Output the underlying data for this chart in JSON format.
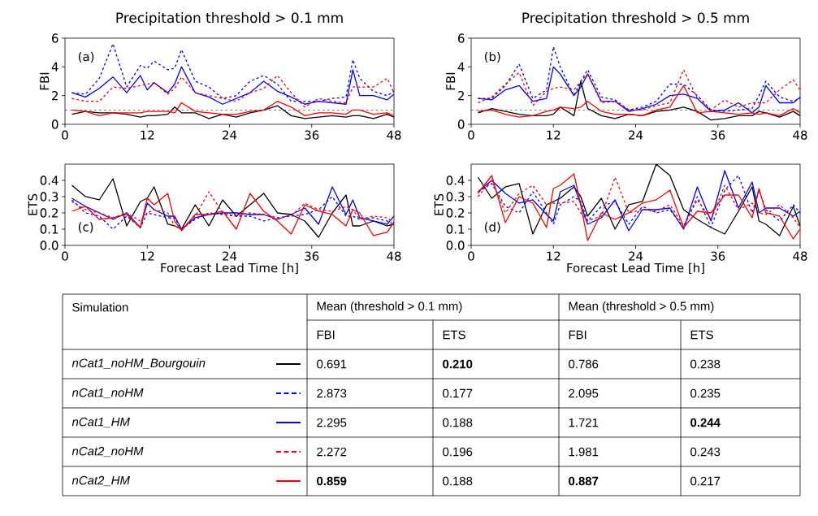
{
  "chart_data": [
    {
      "type": "line",
      "title": "Precipitation threshold > 0.1 mm",
      "ylabel": "FBI",
      "annotations": [
        "(a)"
      ],
      "x": [
        1,
        3,
        5,
        7,
        9,
        11,
        12,
        13,
        15,
        16,
        17,
        19,
        21,
        23,
        25,
        27,
        29,
        31,
        33,
        35,
        37,
        39,
        41,
        42,
        43,
        45,
        47,
        48
      ],
      "xlim": [
        0,
        48
      ],
      "xticks": [
        0,
        12,
        24,
        36,
        48
      ],
      "ylim": [
        0,
        6
      ],
      "yticks": [
        0,
        2,
        4,
        6
      ],
      "ref_lines": [
        {
          "axis": "y",
          "value": 1,
          "color": "#000000",
          "line_style": "dashed"
        }
      ],
      "series": [
        {
          "color": "#000000",
          "line_style": "solid",
          "values": [
            0.7,
            0.9,
            0.8,
            0.8,
            0.7,
            0.5,
            0.6,
            0.6,
            0.7,
            1.2,
            0.8,
            0.8,
            0.4,
            0.7,
            0.5,
            0.8,
            1.0,
            1.3,
            0.6,
            0.4,
            0.5,
            0.6,
            0.5,
            0.6,
            0.6,
            0.4,
            0.7,
            0.5
          ]
        },
        {
          "color": "#0000ff",
          "line_style": "dashed",
          "values": [
            2.2,
            2.1,
            3.2,
            5.6,
            2.6,
            4.1,
            3.9,
            4.4,
            3.8,
            3.9,
            5.2,
            3.0,
            2.6,
            1.8,
            2.0,
            3.0,
            3.4,
            2.8,
            1.6,
            1.6,
            1.6,
            1.8,
            1.9,
            4.5,
            3.2,
            2.3,
            2.0,
            2.3
          ]
        },
        {
          "color": "#0000ff",
          "line_style": "solid",
          "values": [
            2.2,
            1.9,
            2.5,
            3.3,
            2.2,
            3.4,
            2.4,
            2.9,
            2.2,
            2.8,
            4.0,
            2.2,
            1.9,
            1.4,
            1.8,
            2.2,
            3.0,
            2.3,
            1.9,
            1.4,
            1.6,
            1.5,
            1.4,
            3.8,
            2.0,
            2.0,
            1.7,
            2.1
          ]
        },
        {
          "color": "#ff0000",
          "line_style": "dashed",
          "values": [
            1.8,
            1.6,
            1.6,
            2.6,
            2.5,
            2.7,
            2.8,
            2.9,
            2.1,
            2.5,
            3.3,
            2.2,
            2.0,
            1.8,
            1.6,
            2.2,
            2.5,
            3.4,
            2.2,
            1.2,
            1.8,
            1.6,
            1.5,
            2.6,
            2.6,
            2.6,
            3.2,
            2.2
          ]
        },
        {
          "color": "#ff0000",
          "line_style": "solid",
          "values": [
            1.0,
            0.9,
            0.6,
            0.8,
            0.8,
            0.8,
            0.9,
            0.9,
            0.9,
            0.8,
            1.5,
            0.9,
            0.8,
            0.7,
            0.7,
            0.9,
            1.0,
            1.6,
            1.2,
            0.6,
            0.8,
            0.8,
            0.7,
            1.0,
            1.0,
            0.7,
            0.8,
            0.6
          ]
        }
      ]
    },
    {
      "type": "line",
      "title": "Precipitation threshold > 0.5 mm",
      "ylabel": "FBI",
      "annotations": [
        "(b)"
      ],
      "x": [
        1,
        3,
        5,
        7,
        9,
        11,
        12,
        13,
        15,
        16,
        17,
        19,
        21,
        23,
        25,
        27,
        29,
        31,
        33,
        35,
        37,
        39,
        41,
        42,
        43,
        45,
        47,
        48
      ],
      "xlim": [
        0,
        48
      ],
      "xticks": [
        0,
        12,
        24,
        36,
        48
      ],
      "ylim": [
        0,
        6
      ],
      "yticks": [
        0,
        2,
        4,
        6
      ],
      "ref_lines": [
        {
          "axis": "y",
          "value": 1,
          "color": "#000000",
          "line_style": "dashed"
        }
      ],
      "series": [
        {
          "color": "#000000",
          "line_style": "solid",
          "values": [
            0.8,
            1.1,
            0.9,
            0.7,
            0.6,
            0.6,
            0.7,
            1.2,
            0.6,
            3.0,
            1.1,
            0.6,
            0.4,
            0.7,
            0.6,
            0.9,
            1.0,
            1.2,
            0.9,
            0.3,
            0.4,
            0.6,
            0.6,
            0.9,
            0.8,
            0.5,
            0.9,
            0.6
          ]
        },
        {
          "color": "#0000ff",
          "line_style": "dashed",
          "values": [
            1.8,
            1.8,
            2.7,
            4.2,
            1.8,
            2.4,
            5.4,
            4.0,
            2.0,
            3.0,
            3.8,
            1.9,
            1.7,
            1.0,
            1.2,
            1.6,
            2.8,
            2.8,
            2.0,
            1.0,
            0.9,
            1.0,
            1.1,
            2.0,
            3.0,
            1.9,
            1.6,
            1.8
          ]
        },
        {
          "color": "#0000ff",
          "line_style": "solid",
          "values": [
            1.8,
            1.7,
            2.4,
            2.7,
            1.6,
            1.8,
            4.0,
            3.5,
            2.0,
            2.6,
            3.5,
            1.6,
            1.6,
            0.9,
            1.1,
            1.4,
            2.0,
            2.1,
            1.8,
            0.9,
            1.0,
            1.5,
            0.8,
            1.2,
            2.7,
            1.5,
            1.5,
            1.9
          ]
        },
        {
          "color": "#ff0000",
          "line_style": "dashed",
          "values": [
            1.5,
            1.9,
            2.8,
            3.6,
            1.3,
            2.3,
            2.5,
            2.6,
            2.4,
            3.0,
            3.5,
            1.5,
            1.6,
            1.0,
            1.0,
            1.3,
            1.5,
            3.8,
            1.8,
            1.0,
            1.7,
            1.2,
            1.5,
            1.5,
            1.5,
            2.4,
            3.1,
            2.4
          ]
        },
        {
          "color": "#ff0000",
          "line_style": "solid",
          "values": [
            0.9,
            1.0,
            0.7,
            0.5,
            0.6,
            0.9,
            1.0,
            1.2,
            1.1,
            1.2,
            1.6,
            0.9,
            0.7,
            0.7,
            0.6,
            1.0,
            1.2,
            2.7,
            0.8,
            0.9,
            0.8,
            0.7,
            0.8,
            0.7,
            0.8,
            0.6,
            1.1,
            0.8
          ]
        }
      ]
    },
    {
      "type": "line",
      "xlabel": "Forecast Lead Time [h]",
      "ylabel": "ETS",
      "annotations": [
        "(c)"
      ],
      "x": [
        1,
        3,
        5,
        7,
        9,
        11,
        12,
        13,
        15,
        16,
        17,
        19,
        21,
        23,
        25,
        27,
        29,
        31,
        33,
        35,
        37,
        39,
        41,
        42,
        43,
        45,
        47,
        48
      ],
      "xlim": [
        0,
        48
      ],
      "xticks": [
        0,
        12,
        24,
        36,
        48
      ],
      "ylim": [
        0,
        0.5
      ],
      "yticks": [
        {
          "value": 0,
          "label": "0.0"
        },
        0.1,
        0.2,
        0.3,
        0.4
      ],
      "series": [
        {
          "color": "#000000",
          "line_style": "solid",
          "values": [
            0.37,
            0.3,
            0.28,
            0.41,
            0.12,
            0.27,
            0.29,
            0.36,
            0.13,
            0.12,
            0.1,
            0.25,
            0.12,
            0.28,
            0.18,
            0.25,
            0.32,
            0.2,
            0.19,
            0.15,
            0.05,
            0.2,
            0.31,
            0.12,
            0.12,
            0.15,
            0.12,
            0.13
          ]
        },
        {
          "color": "#0000ff",
          "line_style": "dashed",
          "values": [
            0.28,
            0.2,
            0.18,
            0.1,
            0.18,
            0.11,
            0.2,
            0.19,
            0.17,
            0.17,
            0.1,
            0.16,
            0.2,
            0.19,
            0.18,
            0.18,
            0.15,
            0.17,
            0.18,
            0.19,
            0.22,
            0.3,
            0.18,
            0.18,
            0.16,
            0.17,
            0.15,
            0.13
          ]
        },
        {
          "color": "#0000ff",
          "line_style": "solid",
          "values": [
            0.29,
            0.24,
            0.2,
            0.16,
            0.2,
            0.11,
            0.26,
            0.22,
            0.18,
            0.18,
            0.1,
            0.17,
            0.19,
            0.2,
            0.2,
            0.19,
            0.19,
            0.16,
            0.19,
            0.23,
            0.13,
            0.36,
            0.19,
            0.28,
            0.17,
            0.15,
            0.13,
            0.18
          ]
        },
        {
          "color": "#ff0000",
          "line_style": "dashed",
          "values": [
            0.27,
            0.22,
            0.2,
            0.17,
            0.2,
            0.15,
            0.2,
            0.22,
            0.2,
            0.12,
            0.1,
            0.18,
            0.33,
            0.2,
            0.18,
            0.2,
            0.19,
            0.17,
            0.18,
            0.26,
            0.22,
            0.21,
            0.24,
            0.22,
            0.16,
            0.18,
            0.17,
            0.14
          ]
        },
        {
          "color": "#ff0000",
          "line_style": "solid",
          "values": [
            0.21,
            0.24,
            0.16,
            0.17,
            0.19,
            0.11,
            0.29,
            0.25,
            0.32,
            0.15,
            0.09,
            0.19,
            0.19,
            0.21,
            0.1,
            0.32,
            0.21,
            0.15,
            0.07,
            0.25,
            0.21,
            0.19,
            0.12,
            0.22,
            0.2,
            0.06,
            0.08,
            0.14
          ]
        }
      ]
    },
    {
      "type": "line",
      "xlabel": "Forecast Lead Time [h]",
      "ylabel": "ETS",
      "annotations": [
        "(d)"
      ],
      "x": [
        1,
        3,
        5,
        7,
        9,
        11,
        12,
        13,
        15,
        16,
        17,
        19,
        21,
        23,
        25,
        27,
        29,
        31,
        33,
        35,
        37,
        39,
        41,
        42,
        43,
        45,
        47,
        48
      ],
      "xlim": [
        0,
        48
      ],
      "xticks": [
        0,
        12,
        24,
        36,
        48
      ],
      "ylim": [
        0,
        0.5
      ],
      "yticks": [
        {
          "value": 0,
          "label": "0.0"
        },
        0.1,
        0.2,
        0.3,
        0.4
      ],
      "series": [
        {
          "color": "#000000",
          "line_style": "solid",
          "values": [
            0.42,
            0.29,
            0.36,
            0.38,
            0.07,
            0.25,
            0.27,
            0.29,
            0.36,
            0.3,
            0.18,
            0.29,
            0.1,
            0.25,
            0.27,
            0.5,
            0.43,
            0.22,
            0.16,
            0.11,
            0.07,
            0.21,
            0.36,
            0.15,
            0.13,
            0.06,
            0.24,
            0.12
          ]
        },
        {
          "color": "#0000ff",
          "line_style": "dashed",
          "values": [
            0.33,
            0.38,
            0.24,
            0.2,
            0.33,
            0.2,
            0.13,
            0.25,
            0.3,
            0.27,
            0.15,
            0.24,
            0.27,
            0.13,
            0.24,
            0.2,
            0.22,
            0.11,
            0.3,
            0.11,
            0.34,
            0.43,
            0.2,
            0.34,
            0.22,
            0.15,
            0.25,
            0.2
          ]
        },
        {
          "color": "#0000ff",
          "line_style": "solid",
          "values": [
            0.33,
            0.4,
            0.32,
            0.26,
            0.28,
            0.19,
            0.15,
            0.33,
            0.37,
            0.25,
            0.13,
            0.17,
            0.28,
            0.09,
            0.22,
            0.22,
            0.23,
            0.1,
            0.36,
            0.15,
            0.46,
            0.23,
            0.39,
            0.2,
            0.23,
            0.23,
            0.18,
            0.21
          ]
        },
        {
          "color": "#ff0000",
          "line_style": "dashed",
          "values": [
            0.3,
            0.4,
            0.2,
            0.32,
            0.37,
            0.25,
            0.26,
            0.26,
            0.27,
            0.2,
            0.15,
            0.18,
            0.42,
            0.2,
            0.22,
            0.21,
            0.25,
            0.12,
            0.28,
            0.16,
            0.37,
            0.22,
            0.26,
            0.2,
            0.19,
            0.25,
            0.17,
            0.11
          ]
        },
        {
          "color": "#ff0000",
          "line_style": "solid",
          "values": [
            0.32,
            0.43,
            0.14,
            0.3,
            0.26,
            0.11,
            0.35,
            0.37,
            0.44,
            0.25,
            0.03,
            0.2,
            0.16,
            0.2,
            0.26,
            0.28,
            0.34,
            0.11,
            0.21,
            0.2,
            0.31,
            0.31,
            0.17,
            0.35,
            0.2,
            0.18,
            0.04,
            0.1
          ]
        }
      ]
    },
    {
      "type": "other",
      "annotations": [
        "Simulation",
        "Mean (threshold > 0.1 mm)",
        "Mean (threshold > 0.5 mm)"
      ],
      "categories": [
        "nCat1_noHM_Bourgouin",
        "nCat1_noHM",
        "nCat1_HM",
        "nCat2_noHM",
        "nCat2_HM"
      ],
      "colors": [
        "#000000",
        "#0000ff",
        "#0000ff",
        "#ff0000",
        "#ff0000"
      ],
      "series": [
        {
          "name": "FBI",
          "values": [
            0.691,
            2.873,
            2.295,
            2.272,
            0.859
          ],
          "value_labels": [
            "0.691",
            "2.873",
            "2.295",
            "2.272",
            "**0.859**"
          ]
        },
        {
          "name": "ETS",
          "values": [
            0.21,
            0.177,
            0.188,
            0.196,
            0.188
          ],
          "value_labels": [
            "**0.210**",
            "0.177",
            "0.188",
            "0.196",
            "0.188"
          ]
        },
        {
          "name": "FBI",
          "values": [
            0.786,
            2.095,
            1.721,
            1.981,
            0.887
          ],
          "value_labels": [
            "0.786",
            "2.095",
            "1.721",
            "1.981",
            "**0.887**"
          ]
        },
        {
          "name": "ETS",
          "values": [
            0.238,
            0.235,
            0.244,
            0.243,
            0.217
          ],
          "value_labels": [
            "0.238",
            "0.235",
            "**0.244**",
            "0.243",
            "0.217"
          ]
        }
      ]
    }
  ]
}
